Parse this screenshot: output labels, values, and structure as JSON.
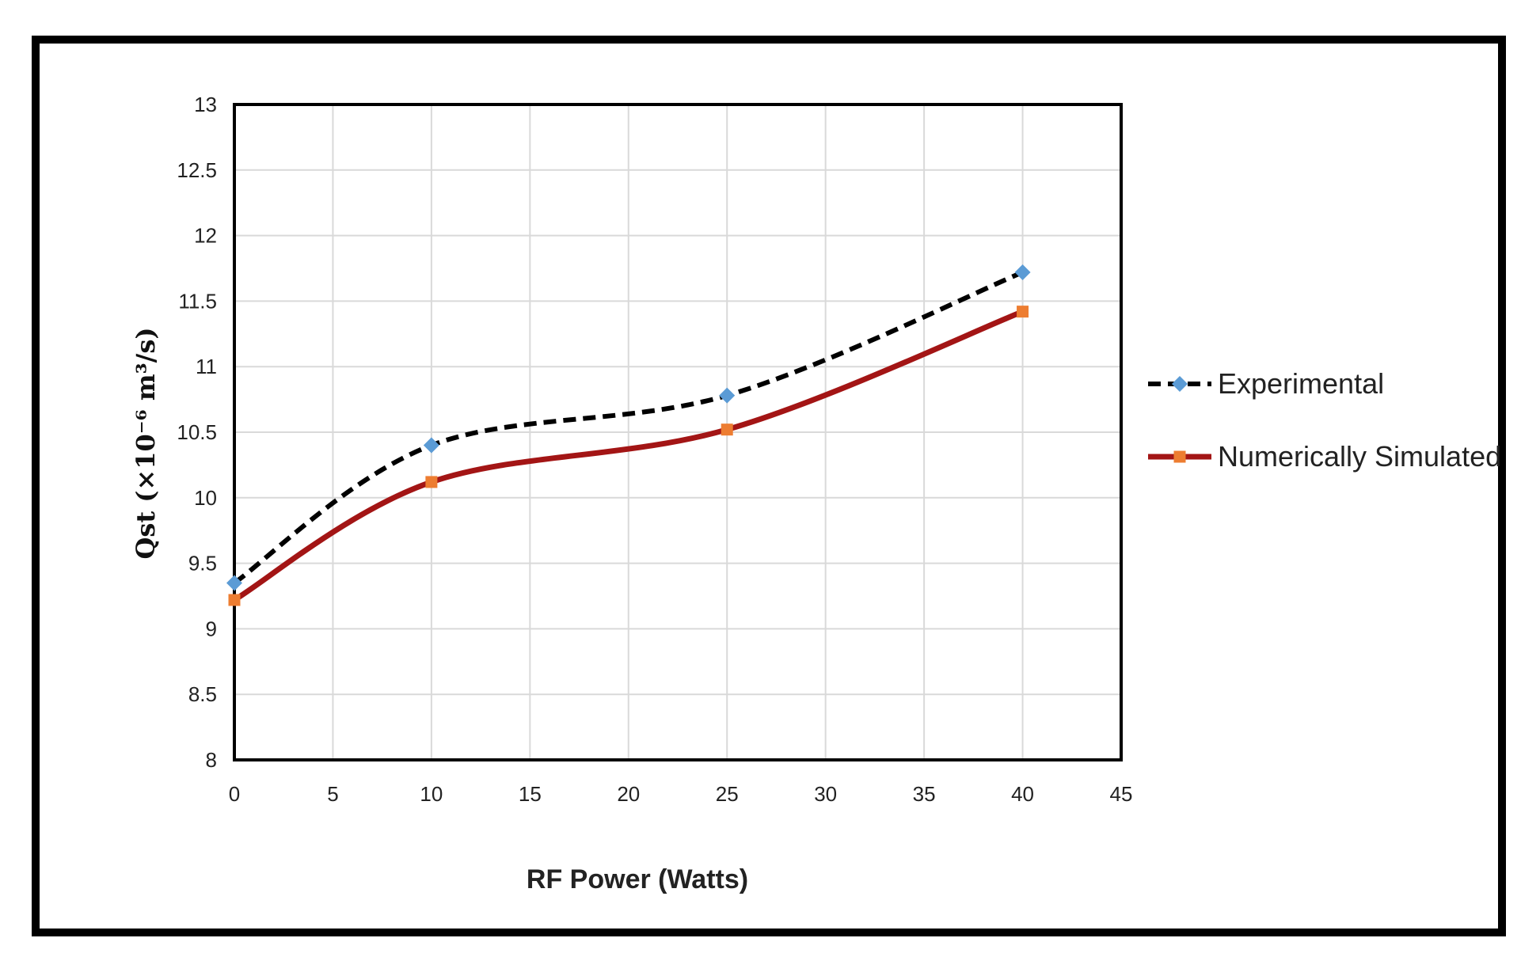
{
  "chart_data": {
    "type": "line",
    "x": [
      0,
      10,
      25,
      40
    ],
    "series": [
      {
        "name": "Experimental",
        "values": [
          9.35,
          10.4,
          10.78,
          11.72
        ],
        "color": "#000000",
        "marker_color": "#5b9bd5",
        "marker": "diamond",
        "dash": true
      },
      {
        "name": "Numerically Simulated",
        "values": [
          9.22,
          10.12,
          10.52,
          11.42
        ],
        "color": "#a31515",
        "marker_color": "#ed7d31",
        "marker": "square",
        "dash": false
      }
    ],
    "xlabel": "RF Power (Watts)",
    "ylabel": "Qst (×10⁻⁶ m³/s)",
    "xlim": [
      0,
      45
    ],
    "ylim": [
      8,
      13
    ],
    "xticks": [
      "0",
      "5",
      "10",
      "15",
      "20",
      "25",
      "30",
      "35",
      "40",
      "45"
    ],
    "yticks": [
      "8",
      "8.5",
      "9",
      "9.5",
      "10",
      "10.5",
      "11",
      "11.5",
      "12",
      "12.5",
      "13"
    ],
    "grid": true,
    "legend_position": "right"
  }
}
